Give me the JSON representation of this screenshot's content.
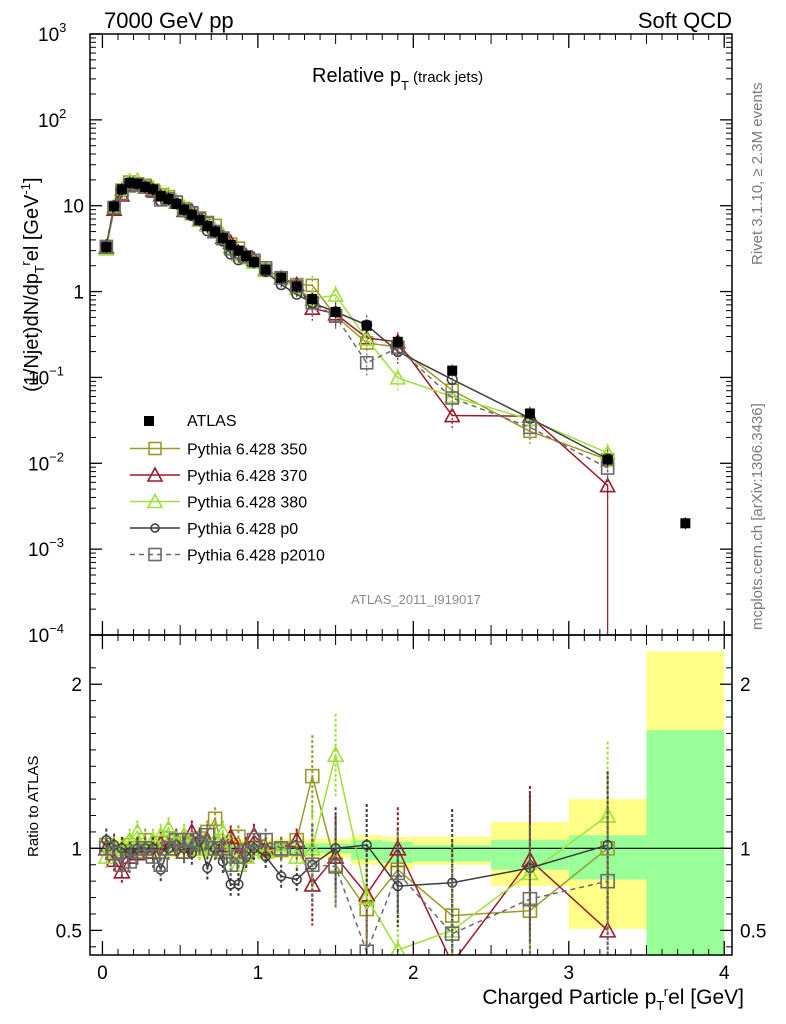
{
  "header": {
    "left": "7000 GeV pp",
    "right": "Soft QCD"
  },
  "side": {
    "rivet": "Rivet 3.1.10, ≥ 2.3M events",
    "mcplots": "mcplots.cern.ch [arXiv:1306.3436]"
  },
  "chart_data": {
    "type": "line",
    "title": "Relative p_T (track jets)",
    "title_main": "Relative p",
    "title_sub": "T",
    "title_suffix": " (track jets)",
    "analysis_tag": "ATLAS_2011_I919017",
    "xlabel": "Charged Particle p_T^rel [GeV]",
    "ylabel": "(1/Njet)dN/dp_T^rel [GeV^-1]",
    "ratio_ylabel": "Ratio to ATLAS",
    "xlim": [
      -0.08,
      4.05
    ],
    "ylim": [
      0.0001,
      1000
    ],
    "yscale": "log",
    "ratio_ylim": [
      0.35,
      2.3
    ],
    "x_ticks": [
      "0",
      "1",
      "2",
      "3",
      "4"
    ],
    "main_y_ticks": [
      {
        "base": "10",
        "exp": "3",
        "v": 1000
      },
      {
        "base": "10",
        "exp": "2",
        "v": 100
      },
      {
        "base": "10",
        "exp": "",
        "v": 10
      },
      {
        "base": "1",
        "exp": "",
        "v": 1
      },
      {
        "base": "10",
        "exp": "−1",
        "v": 0.1
      },
      {
        "base": "10",
        "exp": "−2",
        "v": 0.01
      },
      {
        "base": "10",
        "exp": "−3",
        "v": 0.001
      },
      {
        "base": "10",
        "exp": "−4",
        "v": 0.0001
      }
    ],
    "ratio_y_ticks": [
      {
        "label": "2",
        "v": 2
      },
      {
        "label": "1",
        "v": 1
      },
      {
        "label": "0.5",
        "v": 0.5
      }
    ],
    "data": {
      "name": "ATLAS",
      "x": [
        0.025,
        0.075,
        0.125,
        0.175,
        0.225,
        0.275,
        0.325,
        0.375,
        0.425,
        0.475,
        0.525,
        0.575,
        0.625,
        0.675,
        0.725,
        0.775,
        0.825,
        0.875,
        0.925,
        0.975,
        1.05,
        1.15,
        1.25,
        1.35,
        1.5,
        1.7,
        1.9,
        2.25,
        2.75,
        3.25,
        3.75
      ],
      "y": [
        3.3,
        9.8,
        15.5,
        18.5,
        18.0,
        16.5,
        15.5,
        13.0,
        12.0,
        10.5,
        9.0,
        7.9,
        6.8,
        5.8,
        5.0,
        4.2,
        3.5,
        3.0,
        2.6,
        2.2,
        1.8,
        1.45,
        1.15,
        0.82,
        0.58,
        0.4,
        0.26,
        0.12,
        0.038,
        0.011,
        0.002
      ]
    },
    "bands": [
      {
        "x0": 0.0,
        "x1": 1.6,
        "y": [
          0.97,
          1.03
        ],
        "yellow": [
          0.94,
          1.06
        ]
      },
      {
        "x0": 1.6,
        "x1": 1.8,
        "y": [
          0.93,
          1.05
        ],
        "yellow": [
          0.9,
          1.08
        ]
      },
      {
        "x0": 1.8,
        "x1": 2.0,
        "y": [
          0.91,
          1.04
        ],
        "yellow": [
          0.87,
          1.07
        ]
      },
      {
        "x0": 2.0,
        "x1": 2.5,
        "y": [
          0.92,
          1.02
        ],
        "yellow": [
          0.9,
          1.07
        ]
      },
      {
        "x0": 2.5,
        "x1": 3.0,
        "y": [
          0.87,
          1.05
        ],
        "yellow": [
          0.77,
          1.16
        ]
      },
      {
        "x0": 3.0,
        "x1": 3.5,
        "y": [
          0.81,
          1.08
        ],
        "yellow": [
          0.51,
          1.3
        ]
      },
      {
        "x0": 3.5,
        "x1": 4.0,
        "y": [
          0.35,
          1.72
        ],
        "yellow": [
          0.35,
          2.2
        ]
      }
    ],
    "series": [
      {
        "name": "Pythia 6.428 350",
        "color": "#9a9a2a",
        "marker": "square",
        "dash": false,
        "x": [
          0.025,
          0.075,
          0.125,
          0.175,
          0.225,
          0.275,
          0.325,
          0.375,
          0.425,
          0.475,
          0.525,
          0.575,
          0.625,
          0.675,
          0.725,
          0.775,
          0.825,
          0.875,
          0.925,
          0.975,
          1.05,
          1.15,
          1.25,
          1.35,
          1.5,
          1.7,
          1.9,
          2.25,
          2.75,
          3.25
        ],
        "ratio": [
          1.02,
          0.97,
          0.98,
          1.02,
          1.0,
          1.05,
          0.98,
          1.03,
          1.06,
          1.05,
          1.03,
          1.02,
          1.06,
          1.1,
          1.18,
          0.98,
          1.02,
          1.07,
          0.96,
          1.0,
          0.99,
          0.99,
          1.05,
          1.44,
          0.9,
          0.63,
          0.87,
          0.59,
          0.62,
          1.0
        ]
      },
      {
        "name": "Pythia 6.428 370",
        "color": "#9a1a2a",
        "marker": "triangle",
        "dash": false,
        "x": [
          0.025,
          0.075,
          0.125,
          0.175,
          0.225,
          0.275,
          0.325,
          0.375,
          0.425,
          0.475,
          0.525,
          0.575,
          0.625,
          0.675,
          0.725,
          0.775,
          0.825,
          0.875,
          0.925,
          0.975,
          1.05,
          1.15,
          1.25,
          1.35,
          1.5,
          1.7,
          1.9,
          2.25,
          2.75,
          3.25
        ],
        "ratio": [
          1.0,
          0.93,
          0.86,
          0.95,
          0.97,
          1.0,
          0.98,
          1.03,
          1.0,
          1.05,
          0.98,
          1.1,
          1.0,
          1.05,
          1.0,
          1.02,
          1.07,
          0.96,
          1.0,
          1.08,
          1.0,
          1.0,
          1.05,
          0.78,
          0.95,
          0.72,
          1.0,
          0.3,
          0.93,
          0.5
        ]
      },
      {
        "name": "Pythia 6.428 380",
        "color": "#9ee03a",
        "marker": "triangle",
        "dash": false,
        "x": [
          0.025,
          0.075,
          0.125,
          0.175,
          0.225,
          0.275,
          0.325,
          0.375,
          0.425,
          0.475,
          0.525,
          0.575,
          0.625,
          0.675,
          0.725,
          0.775,
          0.825,
          0.875,
          0.925,
          0.975,
          1.05,
          1.15,
          1.25,
          1.35,
          1.5,
          1.7,
          1.9,
          2.25,
          2.75,
          3.25
        ],
        "ratio": [
          0.95,
          1.0,
          1.0,
          1.05,
          1.1,
          1.0,
          1.05,
          1.08,
          1.12,
          1.04,
          1.08,
          1.03,
          1.0,
          1.02,
          1.05,
          1.1,
          0.95,
          0.9,
          0.95,
          1.0,
          0.98,
          1.0,
          0.95,
          1.0,
          1.57,
          0.7,
          0.38,
          0.5,
          0.85,
          1.2
        ]
      },
      {
        "name": "Pythia 6.428 p0",
        "color": "#3c3c3c",
        "marker": "circle",
        "dash": false,
        "x": [
          0.025,
          0.075,
          0.125,
          0.175,
          0.225,
          0.275,
          0.325,
          0.375,
          0.425,
          0.475,
          0.525,
          0.575,
          0.625,
          0.675,
          0.725,
          0.775,
          0.825,
          0.875,
          0.925,
          0.975,
          1.05,
          1.15,
          1.25,
          1.35,
          1.5,
          1.7,
          1.9,
          2.25,
          2.75,
          3.25
        ],
        "ratio": [
          1.05,
          1.02,
          1.0,
          0.97,
          1.0,
          1.0,
          1.0,
          0.87,
          1.0,
          1.02,
          1.0,
          0.97,
          1.05,
          0.88,
          1.0,
          0.92,
          0.78,
          0.78,
          0.95,
          1.0,
          0.95,
          0.83,
          0.81,
          0.9,
          1.0,
          1.02,
          0.77,
          0.79,
          0.88,
          1.02
        ]
      },
      {
        "name": "Pythia 6.428 p2010",
        "color": "#6a6a6a",
        "marker": "square",
        "dash": true,
        "x": [
          0.025,
          0.075,
          0.125,
          0.175,
          0.225,
          0.275,
          0.325,
          0.375,
          0.425,
          0.475,
          0.525,
          0.575,
          0.625,
          0.675,
          0.725,
          0.775,
          0.825,
          0.875,
          0.925,
          0.975,
          1.05,
          1.15,
          1.25,
          1.35,
          1.5,
          1.7,
          1.9,
          2.25,
          2.75,
          3.25
        ],
        "ratio": [
          1.0,
          0.97,
          0.9,
          0.92,
          0.98,
          1.0,
          0.95,
          0.9,
          1.0,
          1.05,
          0.98,
          1.05,
          1.03,
          1.08,
          1.0,
          1.0,
          0.9,
          0.95,
          0.98,
          1.05,
          1.05,
          1.0,
          1.0,
          0.9,
          0.89,
          0.37,
          0.85,
          0.48,
          0.69,
          0.8
        ]
      }
    ]
  }
}
